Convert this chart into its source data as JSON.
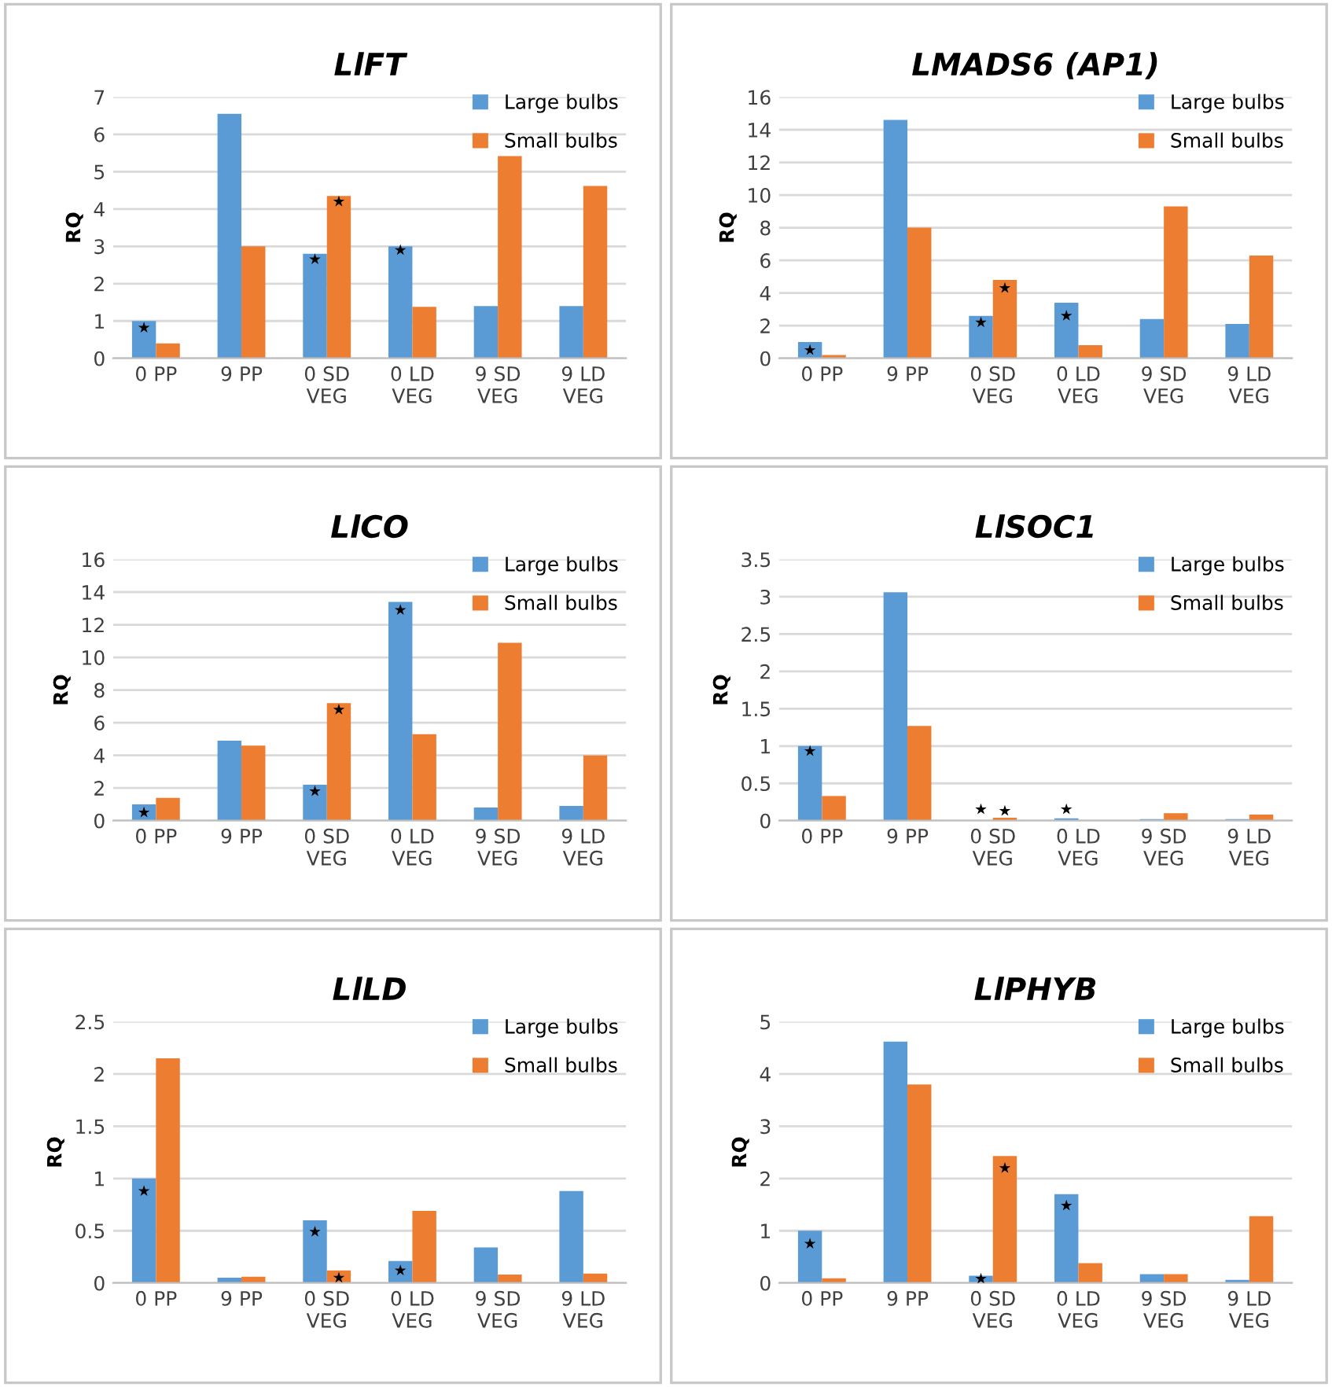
{
  "chart_data": [
    {
      "type": "bar",
      "title": "LlFT",
      "ylabel": "RQ",
      "categories": [
        "0 PP",
        "9 PP",
        "0 SD\nVEG",
        "0 LD\nVEG",
        "9 SD\nVEG",
        "9 LD\nVEG"
      ],
      "ylim": [
        0,
        7
      ],
      "yticks": [
        0,
        1,
        2,
        3,
        4,
        5,
        6,
        7
      ],
      "grid": "y",
      "legend": "top right",
      "series": [
        {
          "name": "Large bulbs",
          "color": "#5b9bd5",
          "values": [
            1.0,
            6.55,
            2.8,
            3.0,
            1.4,
            1.4
          ]
        },
        {
          "name": "Small bulbs",
          "color": "#ed7d31",
          "values": [
            0.4,
            3.0,
            4.35,
            1.38,
            5.42,
            4.62
          ]
        },
        {
          "type": "scatter",
          "marker": "star",
          "color": "#000000",
          "values": [
            0.82,
            null,
            2.65,
            2.9,
            null,
            null
          ]
        },
        {
          "type": "scatter",
          "marker": "star",
          "color": "#000000",
          "values": [
            null,
            null,
            4.2,
            null,
            null,
            null
          ]
        }
      ]
    },
    {
      "type": "bar",
      "title": "LMADS6 (AP1)",
      "ylabel": "RQ",
      "categories": [
        "0 PP",
        "9 PP",
        "0 SD\nVEG",
        "0 LD\nVEG",
        "9 SD\nVEG",
        "9 LD\nVEG"
      ],
      "ylim": [
        0,
        16
      ],
      "yticks": [
        0,
        2,
        4,
        6,
        8,
        10,
        12,
        14,
        16
      ],
      "grid": "y",
      "legend": "top right",
      "series": [
        {
          "name": "Large bulbs",
          "color": "#5b9bd5",
          "values": [
            1.0,
            14.6,
            2.6,
            3.4,
            2.4,
            2.1
          ]
        },
        {
          "name": "Small bulbs",
          "color": "#ed7d31",
          "values": [
            0.2,
            8.0,
            4.8,
            0.8,
            9.3,
            6.3
          ]
        },
        {
          "type": "scatter",
          "marker": "star",
          "color": "#000000",
          "values": [
            0.5,
            null,
            2.2,
            2.6,
            null,
            null
          ]
        },
        {
          "type": "scatter",
          "marker": "star",
          "color": "#000000",
          "values": [
            null,
            null,
            4.3,
            null,
            null,
            null
          ]
        }
      ]
    },
    {
      "type": "bar",
      "title": "LlCO",
      "ylabel": "RQ",
      "categories": [
        "0 PP",
        "9 PP",
        "0 SD\nVEG",
        "0 LD\nVEG",
        "9 SD\nVEG",
        "9 LD\nVEG"
      ],
      "ylim": [
        0,
        16
      ],
      "yticks": [
        0,
        2,
        4,
        6,
        8,
        10,
        12,
        14,
        16
      ],
      "grid": "y",
      "legend": "top right",
      "series": [
        {
          "name": "Large bulbs",
          "color": "#5b9bd5",
          "values": [
            1.0,
            4.9,
            2.2,
            13.4,
            0.8,
            0.9
          ]
        },
        {
          "name": "Small bulbs",
          "color": "#ed7d31",
          "values": [
            1.4,
            4.6,
            7.2,
            5.3,
            10.9,
            4.0
          ]
        },
        {
          "type": "scatter",
          "marker": "star",
          "color": "#000000",
          "values": [
            0.5,
            null,
            1.8,
            12.9,
            null,
            null
          ]
        },
        {
          "type": "scatter",
          "marker": "star",
          "color": "#000000",
          "values": [
            null,
            null,
            6.8,
            null,
            null,
            null
          ]
        }
      ]
    },
    {
      "type": "bar",
      "title": "LlSOC1",
      "ylabel": "RQ",
      "categories": [
        "0 PP",
        "9 PP",
        "0 SD\nVEG",
        "0 LD\nVEG",
        "9 SD\nVEG",
        "9 LD\nVEG"
      ],
      "ylim": [
        0,
        3.5
      ],
      "yticks": [
        0,
        0.5,
        1,
        1.5,
        2,
        2.5,
        3,
        3.5
      ],
      "grid": "y",
      "legend": "top right",
      "series": [
        {
          "name": "Large bulbs",
          "color": "#5b9bd5",
          "values": [
            1.0,
            3.06,
            null,
            0.03,
            0.02,
            0.02
          ]
        },
        {
          "name": "Small bulbs",
          "color": "#ed7d31",
          "values": [
            0.33,
            1.27,
            0.04,
            null,
            0.1,
            0.08
          ]
        },
        {
          "type": "scatter",
          "marker": "star",
          "color": "#000000",
          "values": [
            0.93,
            null,
            0.15,
            0.15,
            null,
            null
          ]
        },
        {
          "type": "scatter",
          "marker": "star",
          "color": "#000000",
          "values": [
            null,
            null,
            0.13,
            null,
            null,
            null
          ]
        }
      ]
    },
    {
      "type": "bar",
      "title": "LlLD",
      "ylabel": "RQ",
      "categories": [
        "0 PP",
        "9 PP",
        "0 SD\nVEG",
        "0 LD\nVEG",
        "9 SD\nVEG",
        "9 LD\nVEG"
      ],
      "ylim": [
        0,
        2.5
      ],
      "yticks": [
        0,
        0.5,
        1,
        1.5,
        2,
        2.5
      ],
      "grid": "y",
      "legend": "top right",
      "series": [
        {
          "name": "Large bulbs",
          "color": "#5b9bd5",
          "values": [
            1.0,
            0.05,
            0.6,
            0.21,
            0.34,
            0.88
          ]
        },
        {
          "name": "Small bulbs",
          "color": "#ed7d31",
          "values": [
            2.15,
            0.06,
            0.12,
            0.69,
            0.08,
            0.09
          ]
        },
        {
          "type": "scatter",
          "marker": "star",
          "color": "#000000",
          "values": [
            0.88,
            null,
            0.49,
            0.12,
            null,
            null
          ]
        },
        {
          "type": "scatter",
          "marker": "star",
          "color": "#000000",
          "values": [
            null,
            null,
            0.05,
            null,
            null,
            null
          ]
        }
      ]
    },
    {
      "type": "bar",
      "title": "LlPHYB",
      "ylabel": "RQ",
      "categories": [
        "0 PP",
        "9 PP",
        "0 SD\nVEG",
        "0 LD\nVEG",
        "9 SD\nVEG",
        "9 LD\nVEG"
      ],
      "ylim": [
        0,
        5
      ],
      "yticks": [
        0,
        1,
        2,
        3,
        4,
        5
      ],
      "grid": "y",
      "legend": "top right",
      "series": [
        {
          "name": "Large bulbs",
          "color": "#5b9bd5",
          "values": [
            1.0,
            4.62,
            0.14,
            1.7,
            0.17,
            0.06
          ]
        },
        {
          "name": "Small bulbs",
          "color": "#ed7d31",
          "values": [
            0.09,
            3.8,
            2.43,
            0.38,
            0.17,
            1.28
          ]
        },
        {
          "type": "scatter",
          "marker": "star",
          "color": "#000000",
          "values": [
            0.75,
            null,
            0.08,
            1.48,
            null,
            null
          ]
        },
        {
          "type": "scatter",
          "marker": "star",
          "color": "#000000",
          "values": [
            null,
            null,
            2.2,
            null,
            null,
            null
          ]
        }
      ]
    }
  ]
}
